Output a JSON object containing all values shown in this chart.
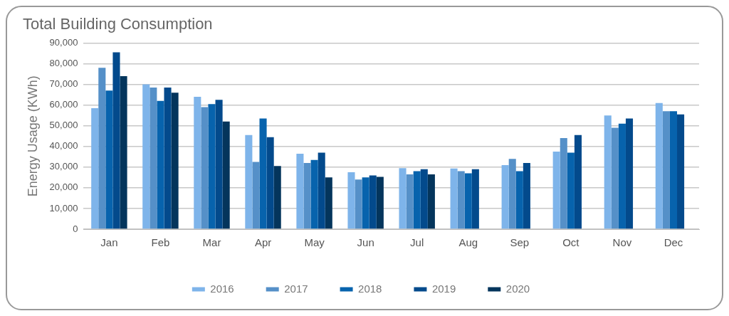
{
  "chart_data": {
    "type": "bar",
    "title": "Total Building Consumption",
    "ylabel": "Energy Usage (KWh)",
    "categories": [
      "Jan",
      "Feb",
      "Mar",
      "Apr",
      "May",
      "Jun",
      "Jul",
      "Aug",
      "Sep",
      "Oct",
      "Nov",
      "Dec"
    ],
    "series": [
      {
        "name": "2016",
        "color": "#7eb4ea",
        "values": [
          58500,
          70000,
          64000,
          45500,
          36500,
          27500,
          29500,
          29300,
          31000,
          37500,
          55000,
          61000
        ]
      },
      {
        "name": "2017",
        "color": "#5590c8",
        "values": [
          78000,
          68500,
          59000,
          32500,
          32000,
          24000,
          26500,
          28000,
          34000,
          44000,
          49000,
          57000
        ]
      },
      {
        "name": "2018",
        "color": "#0763ad",
        "values": [
          67000,
          62000,
          60500,
          53500,
          33500,
          25000,
          28000,
          27000,
          28000,
          37000,
          51000,
          57000
        ]
      },
      {
        "name": "2019",
        "color": "#034a8c",
        "values": [
          85500,
          68500,
          62500,
          44500,
          37000,
          26000,
          29000,
          29000,
          32000,
          45500,
          53500,
          55500
        ]
      },
      {
        "name": "2020",
        "color": "#04355c",
        "values": [
          74000,
          66000,
          52000,
          30500,
          25000,
          25300,
          26500,
          null,
          null,
          null,
          null,
          null
        ]
      }
    ],
    "ylim": [
      0,
      90000
    ],
    "yticks": [
      0,
      {
        "value": 10000,
        "label": "10,000"
      },
      {
        "value": 20000,
        "label": "20,000"
      },
      {
        "value": 30000,
        "label": "30,000"
      },
      {
        "value": 40000,
        "label": "40,000"
      },
      {
        "value": 50000,
        "label": "50,000"
      },
      {
        "value": 60000,
        "label": "60,000"
      },
      {
        "value": 70000,
        "label": "70,000"
      },
      {
        "value": 80000,
        "label": "80,000"
      },
      {
        "value": 90000,
        "label": "90,000"
      }
    ],
    "grid": "y",
    "legend": "bottom"
  }
}
